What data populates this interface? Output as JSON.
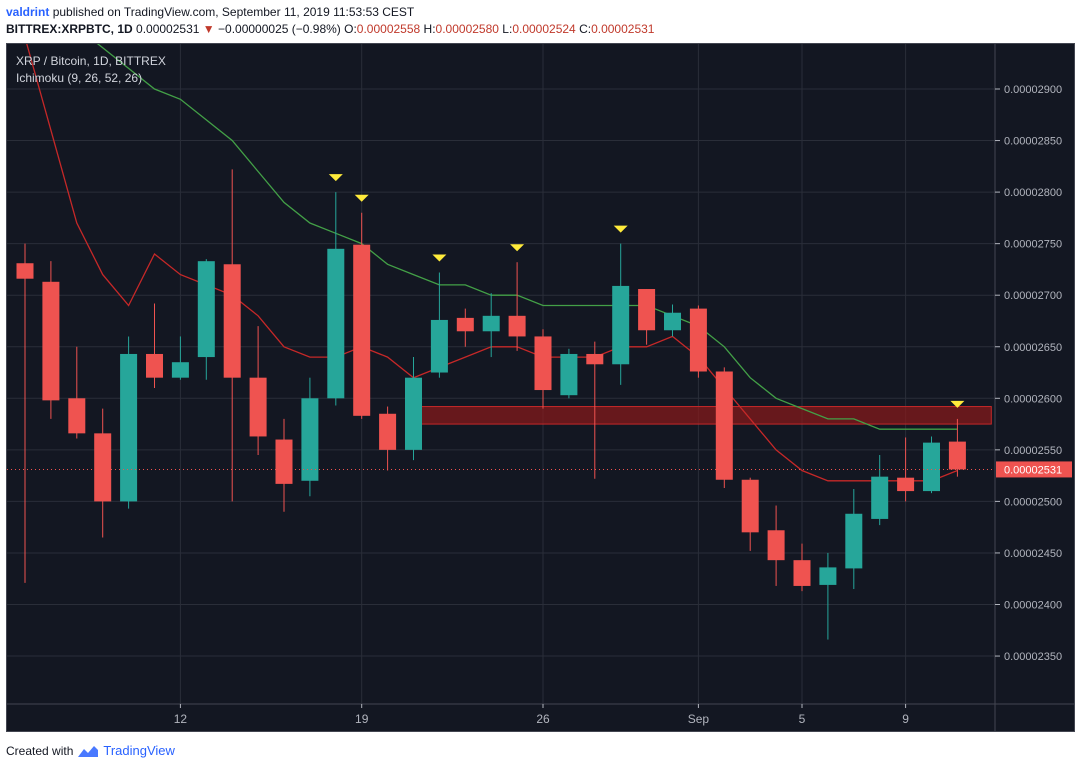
{
  "header": {
    "user": "valdrint",
    "published": "published on TradingView.com, September 11, 2019 11:53:53 CEST",
    "symbol": "BITTREX:XRPBTC, 1D",
    "last": "0.00002531",
    "change": "−0.00000025 (−0.98%)",
    "o_label": "O:",
    "o_val": "0.00002558",
    "h_label": "H:",
    "h_val": "0.00002580",
    "l_label": "L:",
    "l_val": "0.00002524",
    "c_label": "C:",
    "c_val": "0.00002531"
  },
  "overlay": {
    "title": "XRP / Bitcoin, 1D, BITTREX",
    "indicator": "Ichimoku (9, 26, 52, 26)"
  },
  "footer": {
    "created_with": "Created with",
    "brand": "TradingView"
  },
  "colors": {
    "up": "#26a69a",
    "down": "#ef5350",
    "background": "#131722",
    "conversion_line": "#c62828",
    "base_line": "#43a047",
    "marker": "#ffeb3b",
    "resistance_zone": "#8b1a1a",
    "last_price_label": "#ef5350"
  },
  "chart_data": {
    "type": "candlestick",
    "title": "XRP / Bitcoin, 1D, BITTREX",
    "y_range": [
      2.3e-05,
      2.94e-05
    ],
    "y_ticks": [
      "0.00002900",
      "0.00002850",
      "0.00002800",
      "0.00002750",
      "0.00002700",
      "0.00002650",
      "0.00002600",
      "0.00002550",
      "0.00002500",
      "0.00002450",
      "0.00002400",
      "0.00002350"
    ],
    "x_ticks": [
      {
        "label": "12",
        "index": 6
      },
      {
        "label": "19",
        "index": 13
      },
      {
        "label": "26",
        "index": 20
      },
      {
        "label": "Sep",
        "index": 26
      },
      {
        "label": "5",
        "index": 30
      },
      {
        "label": "9",
        "index": 34
      }
    ],
    "last_price": "0.00002531",
    "candles": [
      {
        "o": 2.731e-05,
        "h": 2.75e-05,
        "l": 2.421e-05,
        "c": 2.716e-05
      },
      {
        "o": 2.713e-05,
        "h": 2.733e-05,
        "l": 2.58e-05,
        "c": 2.598e-05
      },
      {
        "o": 2.6e-05,
        "h": 2.65e-05,
        "l": 2.561e-05,
        "c": 2.566e-05
      },
      {
        "o": 2.566e-05,
        "h": 2.59e-05,
        "l": 2.465e-05,
        "c": 2.5e-05
      },
      {
        "o": 2.5e-05,
        "h": 2.66e-05,
        "l": 2.493e-05,
        "c": 2.643e-05
      },
      {
        "o": 2.643e-05,
        "h": 2.692e-05,
        "l": 2.61e-05,
        "c": 2.62e-05
      },
      {
        "o": 2.62e-05,
        "h": 2.66e-05,
        "l": 2.618e-05,
        "c": 2.635e-05
      },
      {
        "o": 2.64e-05,
        "h": 2.735e-05,
        "l": 2.618e-05,
        "c": 2.733e-05
      },
      {
        "o": 2.73e-05,
        "h": 2.822e-05,
        "l": 2.5e-05,
        "c": 2.62e-05
      },
      {
        "o": 2.62e-05,
        "h": 2.67e-05,
        "l": 2.545e-05,
        "c": 2.563e-05
      },
      {
        "o": 2.56e-05,
        "h": 2.58e-05,
        "l": 2.49e-05,
        "c": 2.517e-05
      },
      {
        "o": 2.52e-05,
        "h": 2.62e-05,
        "l": 2.505e-05,
        "c": 2.6e-05
      },
      {
        "o": 2.6e-05,
        "h": 2.8e-05,
        "l": 2.593e-05,
        "c": 2.745e-05
      },
      {
        "o": 2.749e-05,
        "h": 2.78e-05,
        "l": 2.58e-05,
        "c": 2.583e-05
      },
      {
        "o": 2.585e-05,
        "h": 2.592e-05,
        "l": 2.53e-05,
        "c": 2.55e-05
      },
      {
        "o": 2.55e-05,
        "h": 2.64e-05,
        "l": 2.54e-05,
        "c": 2.62e-05
      },
      {
        "o": 2.625e-05,
        "h": 2.722e-05,
        "l": 2.62e-05,
        "c": 2.676e-05
      },
      {
        "o": 2.678e-05,
        "h": 2.687e-05,
        "l": 2.65e-05,
        "c": 2.665e-05
      },
      {
        "o": 2.665e-05,
        "h": 2.702e-05,
        "l": 2.64e-05,
        "c": 2.68e-05
      },
      {
        "o": 2.68e-05,
        "h": 2.732e-05,
        "l": 2.646e-05,
        "c": 2.66e-05
      },
      {
        "o": 2.66e-05,
        "h": 2.667e-05,
        "l": 2.59e-05,
        "c": 2.608e-05
      },
      {
        "o": 2.603e-05,
        "h": 2.648e-05,
        "l": 2.6e-05,
        "c": 2.643e-05
      },
      {
        "o": 2.643e-05,
        "h": 2.655e-05,
        "l": 2.522e-05,
        "c": 2.633e-05
      },
      {
        "o": 2.633e-05,
        "h": 2.75e-05,
        "l": 2.613e-05,
        "c": 2.709e-05
      },
      {
        "o": 2.706e-05,
        "h": 2.706e-05,
        "l": 2.652e-05,
        "c": 2.666e-05
      },
      {
        "o": 2.666e-05,
        "h": 2.691e-05,
        "l": 2.66e-05,
        "c": 2.683e-05
      },
      {
        "o": 2.687e-05,
        "h": 2.69e-05,
        "l": 2.62e-05,
        "c": 2.626e-05
      },
      {
        "o": 2.626e-05,
        "h": 2.63e-05,
        "l": 2.513e-05,
        "c": 2.521e-05
      },
      {
        "o": 2.521e-05,
        "h": 2.523e-05,
        "l": 2.452e-05,
        "c": 2.47e-05
      },
      {
        "o": 2.472e-05,
        "h": 2.496e-05,
        "l": 2.418e-05,
        "c": 2.443e-05
      },
      {
        "o": 2.443e-05,
        "h": 2.459e-05,
        "l": 2.413e-05,
        "c": 2.418e-05
      },
      {
        "o": 2.419e-05,
        "h": 2.45e-05,
        "l": 2.366e-05,
        "c": 2.436e-05
      },
      {
        "o": 2.435e-05,
        "h": 2.512e-05,
        "l": 2.415e-05,
        "c": 2.488e-05
      },
      {
        "o": 2.483e-05,
        "h": 2.545e-05,
        "l": 2.477e-05,
        "c": 2.524e-05
      },
      {
        "o": 2.523e-05,
        "h": 2.562e-05,
        "l": 2.5e-05,
        "c": 2.51e-05
      },
      {
        "o": 2.51e-05,
        "h": 2.563e-05,
        "l": 2.508e-05,
        "c": 2.557e-05
      },
      {
        "o": 2.558e-05,
        "h": 2.58e-05,
        "l": 2.524e-05,
        "c": 2.531e-05
      }
    ],
    "conversion_line": [
      2.95e-05,
      2.86e-05,
      2.77e-05,
      2.72e-05,
      2.69e-05,
      2.74e-05,
      2.72e-05,
      2.71e-05,
      2.7e-05,
      2.68e-05,
      2.65e-05,
      2.64e-05,
      2.64e-05,
      2.65e-05,
      2.64e-05,
      2.62e-05,
      2.63e-05,
      2.64e-05,
      2.65e-05,
      2.65e-05,
      2.64e-05,
      2.64e-05,
      2.64e-05,
      2.65e-05,
      2.65e-05,
      2.66e-05,
      2.64e-05,
      2.61e-05,
      2.58e-05,
      2.55e-05,
      2.53e-05,
      2.52e-05,
      2.52e-05,
      2.52e-05,
      2.52e-05,
      2.52e-05,
      2.53e-05
    ],
    "base_line": [
      3e-05,
      2.98e-05,
      2.96e-05,
      2.94e-05,
      2.92e-05,
      2.9e-05,
      2.89e-05,
      2.87e-05,
      2.85e-05,
      2.82e-05,
      2.79e-05,
      2.77e-05,
      2.76e-05,
      2.75e-05,
      2.73e-05,
      2.72e-05,
      2.71e-05,
      2.71e-05,
      2.7e-05,
      2.7e-05,
      2.69e-05,
      2.69e-05,
      2.69e-05,
      2.69e-05,
      2.69e-05,
      2.68e-05,
      2.67e-05,
      2.65e-05,
      2.62e-05,
      2.6e-05,
      2.59e-05,
      2.58e-05,
      2.58e-05,
      2.57e-05,
      2.57e-05,
      2.57e-05,
      2.57e-05
    ],
    "markers_above_index": [
      12,
      13,
      16,
      19,
      23,
      36
    ],
    "resistance_zone": {
      "x_start_index": 15,
      "x_end_index": 37,
      "y_low": 2.575e-05,
      "y_high": 2.592e-05
    }
  }
}
